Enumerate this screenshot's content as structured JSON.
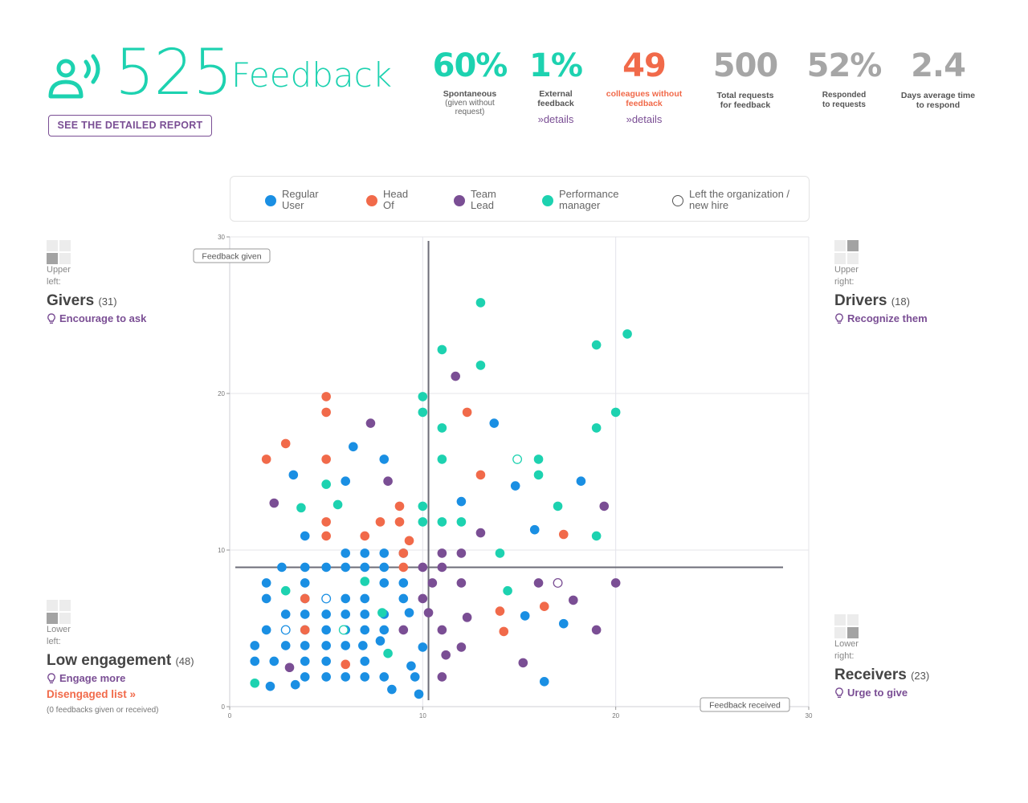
{
  "header": {
    "feedback_count": "525",
    "feedback_label": "Feedback",
    "report_button": "SEE THE DETAILED REPORT",
    "icon": "person-speaking-icon"
  },
  "stats": [
    {
      "value": "60%",
      "label": "Spontaneous",
      "sub": "(given without request)",
      "color": "#1dd2b0"
    },
    {
      "value": "1%",
      "label": "External feedback",
      "link": "»details",
      "color": "#1dd2b0"
    },
    {
      "value": "49",
      "label": "colleagues without feedback",
      "link": "»details",
      "color": "#f16a4a"
    },
    {
      "value": "500",
      "label": "Total requests for feedback",
      "color": "#a6a6a6"
    },
    {
      "value": "52%",
      "label": "Responded to requests",
      "color": "#a6a6a6"
    },
    {
      "value": "2.4",
      "label": "Days average time to respond",
      "color": "#a6a6a6"
    }
  ],
  "legend": [
    {
      "label": "Regular User",
      "color": "#1a8fe3"
    },
    {
      "label": "Head Of",
      "color": "#f16a4a"
    },
    {
      "label": "Team Lead",
      "color": "#7a4e94"
    },
    {
      "label": "Performance manager",
      "color": "#1dd2b0"
    },
    {
      "label": "Left the organization / new hire",
      "color": "#ffffff"
    }
  ],
  "quadrants": {
    "upper_left": {
      "position": "Upper left:",
      "title": "Givers",
      "count": "(31)",
      "action": "Encourage to ask"
    },
    "upper_right": {
      "position": "Upper right:",
      "title": "Drivers",
      "count": "(18)",
      "action": "Recognize them"
    },
    "lower_left": {
      "position": "Lower left:",
      "title": "Low engagement",
      "count": "(48)",
      "action": "Engage more"
    },
    "lower_right": {
      "position": "Lower right:",
      "title": "Receivers",
      "count": "(23)",
      "action": "Urge to give"
    }
  },
  "disengaged": {
    "link": "Disengaged list »",
    "note": "(0 feedbacks given or received)"
  },
  "chart_data": {
    "type": "scatter",
    "xlabel": "Feedback received",
    "ylabel": "Feedback given",
    "xlim": [
      0,
      30
    ],
    "ylim": [
      0,
      30
    ],
    "x_ticks": [
      0,
      10,
      20,
      30
    ],
    "y_ticks": [
      0,
      10,
      20,
      30
    ],
    "grid": true,
    "thresholds": {
      "x": 10.3,
      "y": 8.9
    },
    "series": [
      {
        "name": "Regular User",
        "key": "regular",
        "color": "#1a8fe3",
        "points": [
          [
            3.3,
            14.8
          ],
          [
            6.0,
            14.4
          ],
          [
            6.4,
            16.6
          ],
          [
            8.0,
            15.8
          ],
          [
            3.9,
            10.9
          ],
          [
            6.0,
            9.8
          ],
          [
            7.0,
            9.8
          ],
          [
            8.0,
            9.8
          ],
          [
            9.0,
            9.8
          ],
          [
            2.7,
            8.9
          ],
          [
            3.9,
            8.9
          ],
          [
            5.0,
            8.9
          ],
          [
            6.0,
            8.9
          ],
          [
            7.0,
            8.9
          ],
          [
            8.0,
            8.9
          ],
          [
            1.9,
            7.9
          ],
          [
            3.9,
            7.9
          ],
          [
            8.0,
            7.9
          ],
          [
            9.0,
            7.9
          ],
          [
            1.9,
            6.9
          ],
          [
            3.9,
            6.9
          ],
          [
            6.0,
            6.9
          ],
          [
            7.0,
            6.9
          ],
          [
            9.0,
            6.9
          ],
          [
            2.9,
            5.9
          ],
          [
            3.9,
            5.9
          ],
          [
            5.0,
            5.9
          ],
          [
            6.0,
            5.9
          ],
          [
            7.0,
            5.9
          ],
          [
            8.0,
            5.9
          ],
          [
            9.3,
            6.0
          ],
          [
            1.9,
            4.9
          ],
          [
            3.9,
            4.9
          ],
          [
            5.0,
            4.9
          ],
          [
            6.0,
            4.9
          ],
          [
            7.0,
            4.9
          ],
          [
            8.0,
            4.9
          ],
          [
            1.3,
            3.9
          ],
          [
            2.9,
            3.9
          ],
          [
            3.9,
            3.9
          ],
          [
            5.0,
            3.9
          ],
          [
            6.0,
            3.9
          ],
          [
            6.9,
            3.9
          ],
          [
            7.8,
            4.2
          ],
          [
            1.3,
            2.9
          ],
          [
            2.3,
            2.9
          ],
          [
            3.9,
            2.9
          ],
          [
            5.0,
            2.9
          ],
          [
            7.0,
            2.9
          ],
          [
            3.9,
            1.9
          ],
          [
            5.0,
            1.9
          ],
          [
            6.0,
            1.9
          ],
          [
            7.0,
            1.9
          ],
          [
            8.0,
            1.9
          ],
          [
            3.4,
            1.4
          ],
          [
            2.1,
            1.3
          ],
          [
            8.4,
            1.1
          ],
          [
            9.4,
            2.6
          ],
          [
            9.6,
            1.9
          ],
          [
            10.0,
            3.8
          ],
          [
            9.8,
            0.8
          ],
          [
            12.0,
            13.1
          ],
          [
            13.7,
            18.1
          ],
          [
            14.8,
            14.1
          ],
          [
            15.8,
            11.3
          ],
          [
            18.2,
            14.4
          ],
          [
            15.3,
            5.8
          ],
          [
            17.3,
            5.3
          ],
          [
            16.3,
            1.6
          ]
        ]
      },
      {
        "name": "Head Of",
        "key": "headof",
        "color": "#f16a4a",
        "points": [
          [
            1.9,
            15.8
          ],
          [
            2.9,
            16.8
          ],
          [
            5.0,
            19.8
          ],
          [
            5.0,
            18.8
          ],
          [
            5.0,
            15.8
          ],
          [
            5.0,
            11.8
          ],
          [
            5.0,
            10.9
          ],
          [
            7.0,
            10.9
          ],
          [
            7.8,
            11.8
          ],
          [
            8.8,
            11.8
          ],
          [
            8.8,
            12.8
          ],
          [
            9.3,
            10.6
          ],
          [
            9.0,
            9.8
          ],
          [
            9.0,
            8.9
          ],
          [
            3.9,
            6.9
          ],
          [
            3.9,
            4.9
          ],
          [
            6.0,
            2.7
          ],
          [
            12.3,
            18.8
          ],
          [
            13.0,
            14.8
          ],
          [
            14.0,
            6.1
          ],
          [
            14.2,
            4.8
          ],
          [
            16.3,
            6.4
          ],
          [
            17.3,
            11.0
          ]
        ]
      },
      {
        "name": "Team Lead",
        "key": "teamlead",
        "color": "#7a4e94",
        "points": [
          [
            2.3,
            13.0
          ],
          [
            7.3,
            18.1
          ],
          [
            8.2,
            14.4
          ],
          [
            3.1,
            2.5
          ],
          [
            9.0,
            4.9
          ],
          [
            10.0,
            8.9
          ],
          [
            10.5,
            7.9
          ],
          [
            11.0,
            9.8
          ],
          [
            11.0,
            8.9
          ],
          [
            12.0,
            9.8
          ],
          [
            13.0,
            11.1
          ],
          [
            10.3,
            6.0
          ],
          [
            10.0,
            6.9
          ],
          [
            11.0,
            4.9
          ],
          [
            11.2,
            3.3
          ],
          [
            11.0,
            1.9
          ],
          [
            12.0,
            7.9
          ],
          [
            12.3,
            5.7
          ],
          [
            12.0,
            3.8
          ],
          [
            11.7,
            21.1
          ],
          [
            15.2,
            2.8
          ],
          [
            16.0,
            7.9
          ],
          [
            17.8,
            6.8
          ],
          [
            19.0,
            4.9
          ],
          [
            19.4,
            12.8
          ],
          [
            20.0,
            7.9
          ]
        ]
      },
      {
        "name": "Performance manager",
        "key": "perfmgr",
        "color": "#1dd2b0",
        "points": [
          [
            3.7,
            12.7
          ],
          [
            5.0,
            14.2
          ],
          [
            5.6,
            12.9
          ],
          [
            2.9,
            7.4
          ],
          [
            7.0,
            8.0
          ],
          [
            7.9,
            6.0
          ],
          [
            8.2,
            3.4
          ],
          [
            1.3,
            1.5
          ],
          [
            10.0,
            19.8
          ],
          [
            10.0,
            18.8
          ],
          [
            10.0,
            12.8
          ],
          [
            10.0,
            11.8
          ],
          [
            11.0,
            22.8
          ],
          [
            11.0,
            17.8
          ],
          [
            11.0,
            15.8
          ],
          [
            11.0,
            11.8
          ],
          [
            12.0,
            11.8
          ],
          [
            13.0,
            25.8
          ],
          [
            13.0,
            21.8
          ],
          [
            14.0,
            9.8
          ],
          [
            14.4,
            7.4
          ],
          [
            16.0,
            15.8
          ],
          [
            16.0,
            14.8
          ],
          [
            17.0,
            12.8
          ],
          [
            19.0,
            23.1
          ],
          [
            19.0,
            17.8
          ],
          [
            19.0,
            10.9
          ],
          [
            20.0,
            18.8
          ],
          [
            20.6,
            23.8
          ]
        ]
      },
      {
        "name": "Left the organization / new hire",
        "key": "left",
        "color": "#ffffff",
        "points": [
          {
            "x": 2.9,
            "y": 4.9,
            "ring": "#1a8fe3"
          },
          {
            "x": 5.0,
            "y": 6.9,
            "ring": "#1a8fe3"
          },
          {
            "x": 5.9,
            "y": 4.9,
            "ring": "#1dd2b0"
          },
          {
            "x": 14.9,
            "y": 15.8,
            "ring": "#1dd2b0"
          },
          {
            "x": 17.0,
            "y": 7.9,
            "ring": "#7a4e94"
          }
        ]
      }
    ]
  }
}
